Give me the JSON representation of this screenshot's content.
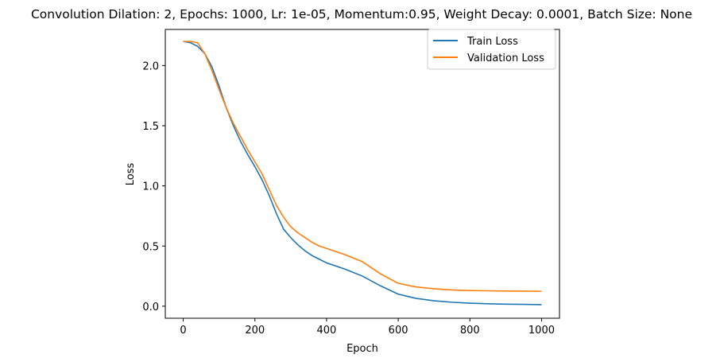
{
  "chart_data": {
    "type": "line",
    "title": "Convolution Dilation: 2, Epochs: 1000, Lr: 1e-05, Momentum:0.95, Weight Decay: 0.0001, Batch Size: None",
    "xlabel": "Epoch",
    "ylabel": "Loss",
    "xlim": [
      -50,
      1050
    ],
    "ylim": [
      -0.1,
      2.3
    ],
    "xticks": [
      0,
      200,
      400,
      600,
      800,
      1000
    ],
    "xtick_labels": [
      "0",
      "200",
      "400",
      "600",
      "800",
      "1000"
    ],
    "yticks": [
      0.0,
      0.5,
      1.0,
      1.5,
      2.0
    ],
    "ytick_labels": [
      "0.0",
      "0.5",
      "1.0",
      "1.5",
      "2.0"
    ],
    "grid": false,
    "legend": "top-right",
    "x": [
      0,
      20,
      40,
      60,
      80,
      100,
      120,
      140,
      160,
      180,
      200,
      220,
      240,
      260,
      280,
      300,
      320,
      340,
      360,
      380,
      400,
      450,
      500,
      550,
      600,
      650,
      700,
      750,
      800,
      850,
      900,
      950,
      1000
    ],
    "series": [
      {
        "name": "Train Loss",
        "color": "#1f77b4",
        "values": [
          2.2,
          2.19,
          2.16,
          2.1,
          1.99,
          1.83,
          1.65,
          1.5,
          1.37,
          1.26,
          1.16,
          1.05,
          0.92,
          0.77,
          0.64,
          0.57,
          0.51,
          0.46,
          0.42,
          0.39,
          0.36,
          0.31,
          0.25,
          0.17,
          0.1,
          0.065,
          0.045,
          0.033,
          0.025,
          0.02,
          0.017,
          0.015,
          0.013
        ]
      },
      {
        "name": "Validation Loss",
        "color": "#ff7f0e",
        "values": [
          2.2,
          2.2,
          2.19,
          2.1,
          1.96,
          1.8,
          1.65,
          1.52,
          1.41,
          1.3,
          1.2,
          1.1,
          0.97,
          0.84,
          0.74,
          0.66,
          0.61,
          0.57,
          0.53,
          0.5,
          0.48,
          0.43,
          0.37,
          0.27,
          0.19,
          0.16,
          0.145,
          0.135,
          0.13,
          0.128,
          0.126,
          0.125,
          0.124
        ]
      }
    ]
  }
}
